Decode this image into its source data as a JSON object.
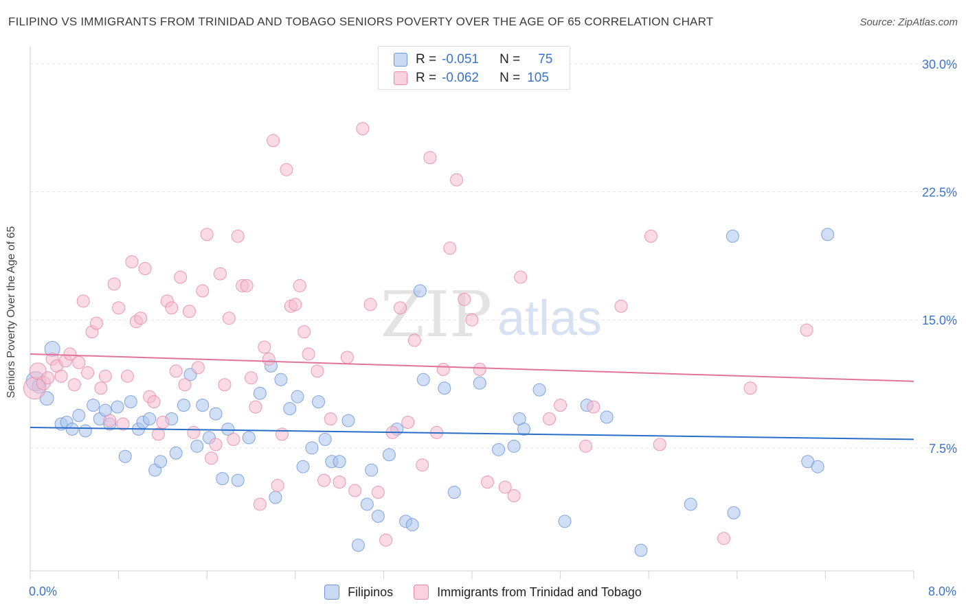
{
  "title": "FILIPINO VS IMMIGRANTS FROM TRINIDAD AND TOBAGO SENIORS POVERTY OVER THE AGE OF 65 CORRELATION CHART",
  "source": "Source: ZipAtlas.com",
  "watermark": {
    "zip": "ZIP",
    "atlas": "atlas"
  },
  "legend": {
    "r_label": "R =",
    "n_label": "N =",
    "rows": [
      {
        "r": "-0.051",
        "n": "75",
        "color": "#a9c4ec",
        "stroke": "#6f97d8"
      },
      {
        "r": "-0.062",
        "n": "105",
        "color": "#f6bccd",
        "stroke": "#e88aa8"
      }
    ]
  },
  "chart_data": {
    "type": "scatter",
    "title": "FILIPINO VS IMMIGRANTS FROM TRINIDAD AND TOBAGO SENIORS POVERTY OVER THE AGE OF 65 CORRELATION CHART",
    "ylabel": "Seniors Poverty Over the Age of 65",
    "xlabel": "",
    "xlim": [
      0,
      8
    ],
    "ylim": [
      0.3,
      30.6
    ],
    "x_tick_labels": [
      "0.0%",
      "8.0%"
    ],
    "y_ticks": [
      7.5,
      15.0,
      22.5,
      30.0
    ],
    "y_tick_labels": [
      "7.5%",
      "15.0%",
      "22.5%",
      "30.0%"
    ],
    "grid": true,
    "legend_position": "top-center",
    "series": [
      {
        "name": "Filipinos",
        "color": "#a9c4ec",
        "stroke": "#6f97d8",
        "trend": {
          "x": [
            0,
            8
          ],
          "y": [
            8.7,
            8.0
          ],
          "color": "#2a6dc9"
        },
        "points": [
          [
            0.05,
            11.4,
            14
          ],
          [
            0.08,
            11.1,
            10
          ],
          [
            0.15,
            10.4,
            10
          ],
          [
            0.2,
            13.3,
            11
          ],
          [
            0.28,
            8.9,
            9
          ],
          [
            0.33,
            9.0,
            9
          ],
          [
            0.38,
            8.6,
            9
          ],
          [
            0.44,
            9.4,
            9
          ],
          [
            0.5,
            8.5,
            9
          ],
          [
            0.57,
            10.0,
            9
          ],
          [
            0.63,
            9.2,
            9
          ],
          [
            0.68,
            9.7,
            9
          ],
          [
            0.72,
            8.9,
            9
          ],
          [
            0.79,
            9.9,
            9
          ],
          [
            0.86,
            7.0,
            9
          ],
          [
            0.91,
            10.2,
            9
          ],
          [
            0.98,
            8.6,
            9
          ],
          [
            1.02,
            9.0,
            9
          ],
          [
            1.08,
            9.2,
            9
          ],
          [
            1.13,
            6.2,
            9
          ],
          [
            1.18,
            6.7,
            9
          ],
          [
            1.28,
            9.2,
            9
          ],
          [
            1.32,
            7.2,
            9
          ],
          [
            1.39,
            10.0,
            9
          ],
          [
            1.45,
            11.8,
            9
          ],
          [
            1.51,
            7.6,
            9
          ],
          [
            1.56,
            10.0,
            9
          ],
          [
            1.62,
            8.1,
            9
          ],
          [
            1.68,
            9.5,
            9
          ],
          [
            1.74,
            5.7,
            9
          ],
          [
            1.79,
            8.6,
            9
          ],
          [
            1.88,
            5.6,
            9
          ],
          [
            1.98,
            8.1,
            9
          ],
          [
            2.08,
            10.7,
            9
          ],
          [
            2.18,
            12.3,
            9
          ],
          [
            2.22,
            4.6,
            9
          ],
          [
            2.27,
            11.5,
            9
          ],
          [
            2.35,
            9.8,
            9
          ],
          [
            2.42,
            10.5,
            9
          ],
          [
            2.47,
            6.4,
            9
          ],
          [
            2.55,
            7.5,
            9
          ],
          [
            2.61,
            10.2,
            9
          ],
          [
            2.67,
            8.0,
            9
          ],
          [
            2.73,
            6.7,
            9
          ],
          [
            2.8,
            6.7,
            9
          ],
          [
            2.88,
            9.1,
            9
          ],
          [
            2.97,
            1.8,
            9
          ],
          [
            3.05,
            4.2,
            9
          ],
          [
            3.09,
            6.2,
            9
          ],
          [
            3.15,
            3.5,
            9
          ],
          [
            3.25,
            7.1,
            9
          ],
          [
            3.32,
            8.6,
            9
          ],
          [
            3.4,
            3.2,
            9
          ],
          [
            3.46,
            3.0,
            9
          ],
          [
            3.53,
            16.7,
            9
          ],
          [
            3.56,
            11.5,
            9
          ],
          [
            3.75,
            11.0,
            9
          ],
          [
            3.84,
            4.9,
            9
          ],
          [
            4.07,
            11.3,
            9
          ],
          [
            4.24,
            7.4,
            9
          ],
          [
            4.38,
            7.6,
            9
          ],
          [
            4.43,
            9.2,
            9
          ],
          [
            4.47,
            8.6,
            9
          ],
          [
            4.61,
            10.9,
            9
          ],
          [
            4.84,
            3.2,
            9
          ],
          [
            5.04,
            10.0,
            9
          ],
          [
            5.22,
            9.3,
            9
          ],
          [
            5.53,
            1.5,
            9
          ],
          [
            5.98,
            4.2,
            9
          ],
          [
            6.36,
            19.9,
            9
          ],
          [
            6.37,
            3.7,
            9
          ],
          [
            7.04,
            6.7,
            9
          ],
          [
            7.13,
            6.4,
            9
          ],
          [
            7.22,
            20.0,
            9
          ]
        ]
      },
      {
        "name": "Immigrants from Trinidad and Tobago",
        "color": "#f6bccd",
        "stroke": "#e88aa8",
        "trend": {
          "x": [
            0,
            8
          ],
          "y": [
            13.0,
            11.4
          ],
          "color": "#e2739a"
        },
        "points": [
          [
            0.04,
            11.0,
            16
          ],
          [
            0.07,
            12.0,
            12
          ],
          [
            0.12,
            11.3,
            10
          ],
          [
            0.16,
            11.6,
            9
          ],
          [
            0.2,
            12.7,
            9
          ],
          [
            0.24,
            12.3,
            9
          ],
          [
            0.28,
            11.7,
            9
          ],
          [
            0.32,
            12.6,
            9
          ],
          [
            0.36,
            13.0,
            9
          ],
          [
            0.4,
            11.2,
            9
          ],
          [
            0.44,
            12.5,
            9
          ],
          [
            0.48,
            16.1,
            9
          ],
          [
            0.52,
            11.9,
            9
          ],
          [
            0.56,
            14.3,
            9
          ],
          [
            0.6,
            14.8,
            9
          ],
          [
            0.64,
            11.0,
            9
          ],
          [
            0.68,
            11.7,
            9
          ],
          [
            0.72,
            9.1,
            9
          ],
          [
            0.76,
            17.1,
            9
          ],
          [
            0.8,
            15.7,
            9
          ],
          [
            0.84,
            8.9,
            9
          ],
          [
            0.88,
            11.7,
            9
          ],
          [
            0.92,
            18.4,
            9
          ],
          [
            0.96,
            14.9,
            9
          ],
          [
            1.0,
            15.1,
            9
          ],
          [
            1.04,
            18.0,
            9
          ],
          [
            1.08,
            10.5,
            9
          ],
          [
            1.12,
            10.2,
            9
          ],
          [
            1.16,
            8.3,
            9
          ],
          [
            1.2,
            9.0,
            9
          ],
          [
            1.24,
            16.1,
            9
          ],
          [
            1.28,
            15.7,
            9
          ],
          [
            1.32,
            12.0,
            9
          ],
          [
            1.36,
            17.5,
            9
          ],
          [
            1.4,
            11.2,
            9
          ],
          [
            1.44,
            15.5,
            9
          ],
          [
            1.48,
            8.4,
            9
          ],
          [
            1.52,
            12.2,
            9
          ],
          [
            1.56,
            16.7,
            9
          ],
          [
            1.6,
            20.0,
            9
          ],
          [
            1.64,
            6.9,
            9
          ],
          [
            1.68,
            7.7,
            9
          ],
          [
            1.72,
            17.7,
            9
          ],
          [
            1.76,
            11.2,
            9
          ],
          [
            1.8,
            15.1,
            9
          ],
          [
            1.84,
            8.0,
            9
          ],
          [
            1.88,
            19.9,
            9
          ],
          [
            1.92,
            17.0,
            9
          ],
          [
            1.96,
            17.0,
            9
          ],
          [
            2.0,
            11.6,
            9
          ],
          [
            2.04,
            9.9,
            9
          ],
          [
            2.08,
            4.2,
            9
          ],
          [
            2.12,
            13.4,
            9
          ],
          [
            2.16,
            12.7,
            9
          ],
          [
            2.2,
            25.5,
            9
          ],
          [
            2.24,
            5.3,
            9
          ],
          [
            2.28,
            8.3,
            9
          ],
          [
            2.32,
            23.8,
            9
          ],
          [
            2.36,
            15.8,
            9
          ],
          [
            2.4,
            15.9,
            9
          ],
          [
            2.44,
            17.0,
            9
          ],
          [
            2.48,
            14.3,
            9
          ],
          [
            2.52,
            13.0,
            9
          ],
          [
            2.6,
            12.0,
            9
          ],
          [
            2.66,
            5.6,
            9
          ],
          [
            2.72,
            9.2,
            9
          ],
          [
            2.8,
            5.5,
            9
          ],
          [
            2.87,
            12.8,
            9
          ],
          [
            2.94,
            5.0,
            9
          ],
          [
            3.01,
            26.2,
            9
          ],
          [
            3.08,
            15.9,
            9
          ],
          [
            3.15,
            4.9,
            9
          ],
          [
            3.22,
            2.1,
            9
          ],
          [
            3.28,
            8.4,
            9
          ],
          [
            3.35,
            15.7,
            9
          ],
          [
            3.42,
            9.0,
            9
          ],
          [
            3.48,
            13.8,
            9
          ],
          [
            3.55,
            6.5,
            9
          ],
          [
            3.62,
            24.5,
            9
          ],
          [
            3.68,
            8.4,
            9
          ],
          [
            3.74,
            12.1,
            9
          ],
          [
            3.8,
            19.2,
            9
          ],
          [
            3.86,
            23.2,
            9
          ],
          [
            3.93,
            16.2,
            9
          ],
          [
            4.0,
            15.0,
            9
          ],
          [
            4.07,
            12.1,
            9
          ],
          [
            4.14,
            5.5,
            9
          ],
          [
            4.3,
            5.2,
            9
          ],
          [
            4.38,
            4.7,
            9
          ],
          [
            4.44,
            17.5,
            9
          ],
          [
            4.7,
            9.2,
            9
          ],
          [
            4.8,
            10.0,
            9
          ],
          [
            5.03,
            7.6,
            9
          ],
          [
            5.1,
            9.9,
            9
          ],
          [
            5.35,
            15.8,
            9
          ],
          [
            5.62,
            19.9,
            9
          ],
          [
            5.7,
            7.7,
            9
          ],
          [
            6.28,
            2.2,
            9
          ],
          [
            6.52,
            11.0,
            9
          ],
          [
            7.03,
            14.4,
            9
          ]
        ]
      }
    ]
  }
}
